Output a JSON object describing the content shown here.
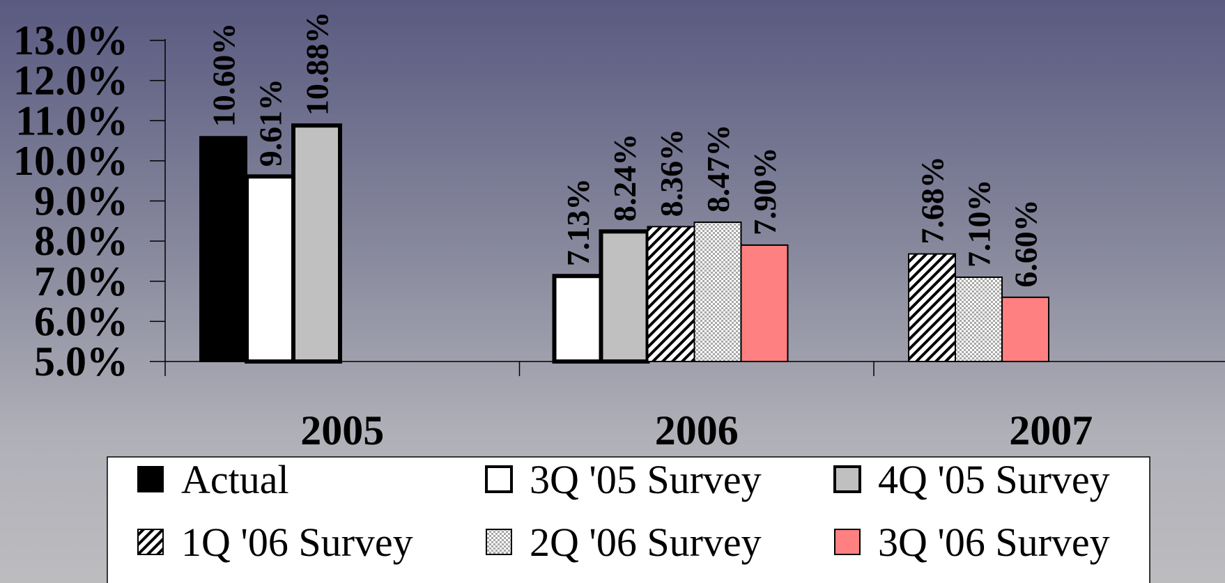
{
  "chart_data": {
    "type": "bar",
    "categories": [
      "2005",
      "2006",
      "2007"
    ],
    "ylim": [
      5.0,
      13.0
    ],
    "yticks": [
      5.0,
      6.0,
      7.0,
      8.0,
      9.0,
      10.0,
      11.0,
      12.0,
      13.0
    ],
    "ytick_labels": [
      "5.0%",
      "6.0%",
      "7.0%",
      "8.0%",
      "9.0%",
      "10.0%",
      "11.0%",
      "12.0%",
      "13.0%"
    ],
    "legend_position": "bottom",
    "series": [
      {
        "name": "Actual",
        "values": [
          10.6,
          null,
          null
        ],
        "labels": [
          "10.60%",
          "",
          ""
        ],
        "fill": "solid-black"
      },
      {
        "name": "3Q '05 Survey",
        "values": [
          9.61,
          7.13,
          null
        ],
        "labels": [
          "9.61%",
          "7.13%",
          ""
        ],
        "fill": "white-thick-border"
      },
      {
        "name": "4Q '05 Survey",
        "values": [
          10.88,
          8.24,
          null
        ],
        "labels": [
          "10.88%",
          "8.24%",
          ""
        ],
        "fill": "gray-thick-border"
      },
      {
        "name": "1Q '06 Survey",
        "values": [
          null,
          8.36,
          7.68
        ],
        "labels": [
          "",
          "8.36%",
          "7.68%"
        ],
        "fill": "diagonal-hatch"
      },
      {
        "name": "2Q '06 Survey",
        "values": [
          null,
          8.47,
          7.1
        ],
        "labels": [
          "",
          "8.47%",
          "7.10%"
        ],
        "fill": "checker-dots"
      },
      {
        "name": "3Q '06 Survey",
        "values": [
          null,
          7.9,
          6.6
        ],
        "labels": [
          "",
          "7.90%",
          "6.60%"
        ],
        "fill": "salmon"
      }
    ],
    "colors": {
      "black": "#000000",
      "white": "#ffffff",
      "gray": "#c0c0c0",
      "salmon": "#ff8080",
      "axis": "#000000"
    }
  }
}
